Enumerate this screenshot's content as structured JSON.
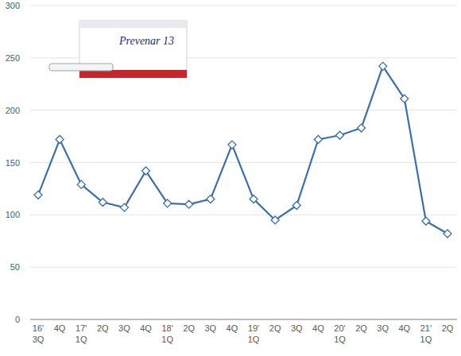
{
  "chart_data": {
    "type": "line",
    "annotations": [
      "Prevenar 13"
    ],
    "categories": [
      "16'\n3Q",
      "4Q",
      "17'\n1Q",
      "2Q",
      "3Q",
      "4Q",
      "18'\n1Q",
      "2Q",
      "3Q",
      "4Q",
      "19'\n1Q",
      "2Q",
      "3Q",
      "4Q",
      "20'\n1Q",
      "2Q",
      "3Q",
      "4Q",
      "21'\n1Q",
      "2Q"
    ],
    "values": [
      119,
      172,
      129,
      112,
      107,
      142,
      111,
      110,
      115,
      167,
      115,
      95,
      109,
      172,
      176,
      183,
      242,
      211,
      94,
      82
    ],
    "color": "#3b6fa6",
    "marker": "diamond",
    "ylim": [
      0,
      300
    ],
    "yticks": [
      0,
      50,
      100,
      150,
      200,
      250,
      300
    ],
    "grid": true
  }
}
